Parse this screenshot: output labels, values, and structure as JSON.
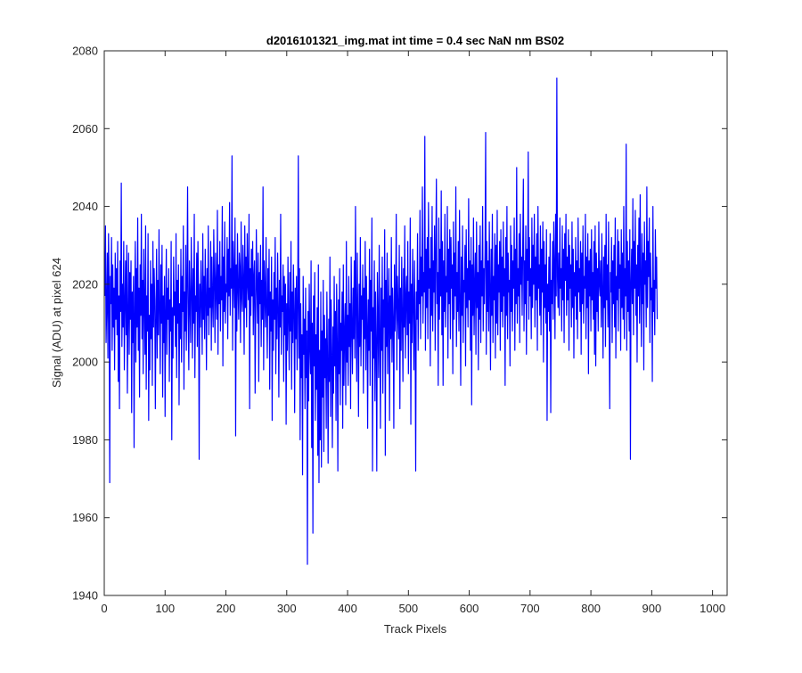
{
  "chart_data": {
    "type": "line",
    "title": "d2016101321_img.mat int time = 0.4 sec  NaN nm BS02",
    "xlabel": "Track Pixels",
    "ylabel": "Signal (ADU) at pixel 624",
    "xlim": [
      0,
      1024
    ],
    "ylim": [
      1940,
      2080
    ],
    "x_ticks": [
      0,
      100,
      200,
      300,
      400,
      500,
      600,
      700,
      800,
      900,
      1000
    ],
    "y_ticks": [
      1940,
      1960,
      1980,
      2000,
      2020,
      2040,
      2060,
      2080
    ],
    "grid": false,
    "legend": "none",
    "series_color": "#0000ff",
    "series": [
      {
        "name": "",
        "x_start": 1,
        "x_step": 1,
        "values": [
          2017,
          2035,
          2005,
          2014,
          2028,
          2001,
          2033,
          2020,
          1969,
          2022,
          2015,
          2032,
          2003,
          2025,
          2009,
          2019,
          1998,
          2028,
          2011,
          2024,
          2007,
          2031,
          1995,
          2017,
          1988,
          2026,
          2013,
          2046,
          2004,
          2020,
          2009,
          2031,
          1998,
          2015,
          2026,
          2007,
          2030,
          1992,
          2012,
          2028,
          2002,
          2023,
          2011,
          2026,
          1987,
          2018,
          2005,
          2022,
          1978,
          2013,
          2031,
          2000,
          2024,
          2009,
          2037,
          2003,
          2019,
          1991,
          2025,
          2012,
          2038,
          2006,
          2021,
          1997,
          2029,
          2015,
          2002,
          2035,
          1993,
          2017,
          2008,
          2033,
          1985,
          2012,
          1998,
          2026,
          2006,
          2020,
          1994,
          2031,
          2009,
          2024,
          2016,
          1988,
          2012,
          2029,
          2001,
          2021,
          2007,
          2034,
          2013,
          1997,
          2025,
          2010,
          2030,
          1991,
          2017,
          2005,
          2022,
          1986,
          2013,
          2029,
          2002,
          2019,
          2011,
          2024,
          1995,
          2016,
          2008,
          2031,
          1980,
          2014,
          2001,
          2027,
          2012,
          2018,
          2004,
          2033,
          1996,
          2021,
          2010,
          2025,
          1989,
          2015,
          2006,
          2029,
          2000,
          2022,
          2013,
          2035,
          1993,
          2018,
          2008,
          2030,
          2003,
          2020,
          2045,
          2011,
          1998,
          2026,
          2015,
          2005,
          2032,
          2019,
          2001,
          2024,
          2010,
          2038,
          1996,
          2017,
          2013,
          2028,
          2004,
          2031,
          2018,
          1975,
          2020,
          2009,
          2026,
          2015,
          2002,
          2033,
          2011,
          2022,
          2006,
          2029,
          2017,
          1998,
          2024,
          2012,
          2035,
          2007,
          2019,
          2014,
          2031,
          2003,
          2027,
          2016,
          2009,
          2034,
          2021,
          2005,
          2028,
          2018,
          2011,
          2039,
          2002,
          2025,
          2015,
          2031,
          2008,
          2022,
          2016,
          2040,
          1999,
          2027,
          2013,
          2036,
          2010,
          2020,
          2018,
          2032,
          2006,
          2029,
          2017,
          2041,
          2012,
          2024,
          2019,
          2053,
          2003,
          2031,
          2022,
          2014,
          2037,
          1981,
          2025,
          2008,
          2033,
          2019,
          2011,
          2028,
          2024,
          2005,
          2036,
          2017,
          2013,
          2030,
          2021,
          2002,
          2035,
          2014,
          2027,
          2009,
          2033,
          2020,
          2016,
          2038,
          1988,
          2024,
          2012,
          2029,
          2017,
          2031,
          2007,
          2022,
          2026,
          1992,
          2013,
          2034,
          2019,
          2010,
          2028,
          1995,
          2023,
          2015,
          2030,
          2004,
          2021,
          2011,
          2045,
          1998,
          2026,
          2018,
          2009,
          2032,
          2014,
          2001,
          2024,
          2012,
          2029,
          1993,
          2018,
          2008,
          2027,
          1985,
          2016,
          2003,
          2023,
          2011,
          2032,
          1997,
          2019,
          2006,
          2028,
          2014,
          1991,
          2021,
          2009,
          2038,
          2002,
          2017,
          2013,
          2025,
          1995,
          2022,
          2007,
          2020,
          1984,
          2015,
          2003,
          2027,
          2011,
          1998,
          2023,
          2008,
          2031,
          1993,
          2018,
          2005,
          2025,
          2013,
          1987,
          2019,
          2006,
          2022,
          1998,
          2014,
          2053,
          2001,
          2024,
          1980,
          2015,
          1996,
          2007,
          1971,
          2022,
          2002,
          2011,
          1988,
          2019,
          1996,
          2008,
          1948,
          2013,
          1990,
          2020,
          2004,
          1997,
          2026,
          1978,
          2010,
          1956,
          2017,
          1999,
          2023,
          1985,
          2007,
          1993,
          2014,
          1976,
          2025,
          1969,
          2003,
          1980,
          2018,
          1973,
          2008,
          1991,
          2021,
          1977,
          2012,
          1996,
          2006,
          1983,
          2018,
          2001,
          1974,
          2011,
          1995,
          2027,
          1986,
          2016,
          2002,
          1978,
          2009,
          1992,
          2022,
          1999,
          2013,
          1985,
          2020,
          2005,
          1972,
          2016,
          1997,
          2024,
          1989,
          2010,
          2003,
          2018,
          1983,
          2025,
          1994,
          2007,
          2015,
          1989,
          2031,
          2000,
          2012,
          1994,
          2022,
          2004,
          2015,
          1988,
          2027,
          2009,
          1997,
          2019,
          2006,
          2026,
          2001,
          2040,
          2013,
          1995,
          2028,
          2009,
          1986,
          2020,
          2004,
          2032,
          1999,
          2017,
          2011,
          2025,
          1992,
          2019,
          2006,
          2031,
          1998,
          2022,
          2010,
          1983,
          2016,
          2003,
          2029,
          1994,
          2021,
          2008,
          2037,
          1972,
          2014,
          2001,
          2026,
          1990,
          2018,
          2005,
          1972,
          2023,
          2011,
          1996,
          2030,
          2007,
          1983,
          2019,
          2003,
          2027,
          1992,
          2016,
          2009,
          2034,
          1976,
          2021,
          2004,
          2028,
          1997,
          2013,
          2024,
          1985,
          2017,
          2006,
          2032,
          2000,
          2019,
          2011,
          1983,
          2025,
          2008,
          2015,
          2038,
          1998,
          2022,
          2013,
          2006,
          2030,
          1988,
          2019,
          2003,
          2027,
          2012,
          1995,
          2024,
          2009,
          2035,
          2001,
          2016,
          2022,
          2007,
          2031,
          1997,
          2018,
          2010,
          2037,
          1984,
          2020,
          2005,
          2029,
          2014,
          1998,
          2026,
          2009,
          1972,
          2018,
          2011,
          2033,
          2003,
          2021,
          2015,
          2039,
          2006,
          2027,
          2017,
          2045,
          2010,
          2023,
          2018,
          2058,
          2003,
          2029,
          2014,
          2032,
          2006,
          2041,
          2019,
          2024,
          1999,
          2032,
          2012,
          2040,
          2008,
          2026,
          2018,
          2035,
          2003,
          2029,
          2047,
          2015,
          2023,
          1994,
          2037,
          2011,
          2029,
          2017,
          2044,
          2007,
          2031,
          1994,
          2026,
          2013,
          2038,
          2009,
          2022,
          2018,
          2040,
          2001,
          2029,
          2015,
          2034,
          2006,
          2032,
          2019,
          2025,
          1997,
          2036,
          2011,
          2028,
          2017,
          2045,
          2004,
          2023,
          2013,
          2031,
          2008,
          2039,
          2016,
          1994,
          2027,
          2012,
          2035,
          2005,
          2021,
          2018,
          2030,
          1999,
          2034,
          2014,
          2024,
          2009,
          2042,
          2016,
          2026,
          2003,
          2032,
          1989,
          2025,
          2012,
          2037,
          2007,
          2019,
          2028,
          2002,
          2036,
          2014,
          2023,
          1998,
          2030,
          2011,
          2035,
          2005,
          2026,
          2017,
          2040,
          2008,
          2024,
          2015,
          2029,
          2059,
          2002,
          2031,
          2013,
          2026,
          2008,
          2036,
          2019,
          1998,
          2029,
          2012,
          2038,
          2005,
          2022,
          2016,
          2033,
          2001,
          2030,
          2010,
          2039,
          2007,
          2025,
          2018,
          2031,
          2003,
          2034,
          2013,
          2027,
          2009,
          2036,
          2017,
          2024,
          1994,
          2032,
          2012,
          2040,
          2006,
          2028,
          2018,
          2021,
          1999,
          2035,
          2013,
          2030,
          2008,
          2026,
          2019,
          2037,
          2003,
          2029,
          2015,
          2050,
          2010,
          2024,
          2017,
          2033,
          2005,
          2038,
          2020,
          2027,
          2012,
          2031,
          2047,
          2008,
          2026,
          2015,
          2035,
          2002,
          2029,
          2021,
          2054,
          2011,
          2032,
          2017,
          2024,
          2006,
          2037,
          2014,
          2030,
          2020,
          2038,
          2009,
          2027,
          2016,
          2033,
          2003,
          2040,
          2019,
          2025,
          2012,
          2035,
          2007,
          2029,
          2018,
          2036,
          2000,
          2031,
          2014,
          2025,
          2010,
          2034,
          1985,
          2020,
          2013,
          2027,
          2008,
          2033,
          1987,
          2021,
          2015,
          2031,
          2011,
          2036,
          2025,
          2006,
          2038,
          2017,
          2073,
          2022,
          2014,
          2028,
          2012,
          2037,
          2019,
          2024,
          2008,
          2035,
          2016,
          2029,
          2005,
          2033,
          2021,
          2038,
          2012,
          2027,
          2016,
          2034,
          2003,
          2030,
          2019,
          2025,
          2009,
          2036,
          2014,
          2029,
          2001,
          2023,
          2017,
          2032,
          2011,
          2026,
          2006,
          2037,
          2018,
          2024,
          2013,
          2031,
          2002,
          2028,
          2015,
          2035,
          2010,
          2022,
          2019,
          2038,
          2006,
          2027,
          2014,
          2033,
          1997,
          2026,
          2017,
          2029,
          2008,
          2034,
          2016,
          2023,
          2011,
          2031,
          2002,
          2035,
          1999,
          2028,
          2013,
          2024,
          2008,
          2036,
          2020,
          2017,
          2026,
          2009,
          2033,
          2019,
          2001,
          2027,
          2014,
          2030,
          2004,
          2038,
          2016,
          2025,
          2009,
          2036,
          2012,
          1988,
          2023,
          2018,
          2032,
          2005,
          2026,
          2015,
          2030,
          2009,
          2037,
          2001,
          2022,
          2016,
          2034,
          2008,
          2031,
          2019,
          2025,
          2003,
          2034,
          2014,
          2028,
          2011,
          2040,
          2006,
          2024,
          2017,
          2056,
          2003,
          2031,
          2013,
          2026,
          2008,
          2034,
          1975,
          2021,
          2029,
          2015,
          2042,
          2007,
          2031,
          2019,
          2039,
          2012,
          2025,
          2000,
          2030,
          2017,
          2037,
          2010,
          2043,
          2021,
          2004,
          2033,
          2015,
          2028,
          1998,
          2036,
          2020,
          2026,
          2009,
          2045,
          2014,
          2031,
          2022,
          2037,
          2005,
          2028,
          2016,
          2019,
          1995,
          2040,
          2013,
          2021,
          2007,
          2034,
          2019,
          2027,
          2011
        ]
      }
    ]
  }
}
